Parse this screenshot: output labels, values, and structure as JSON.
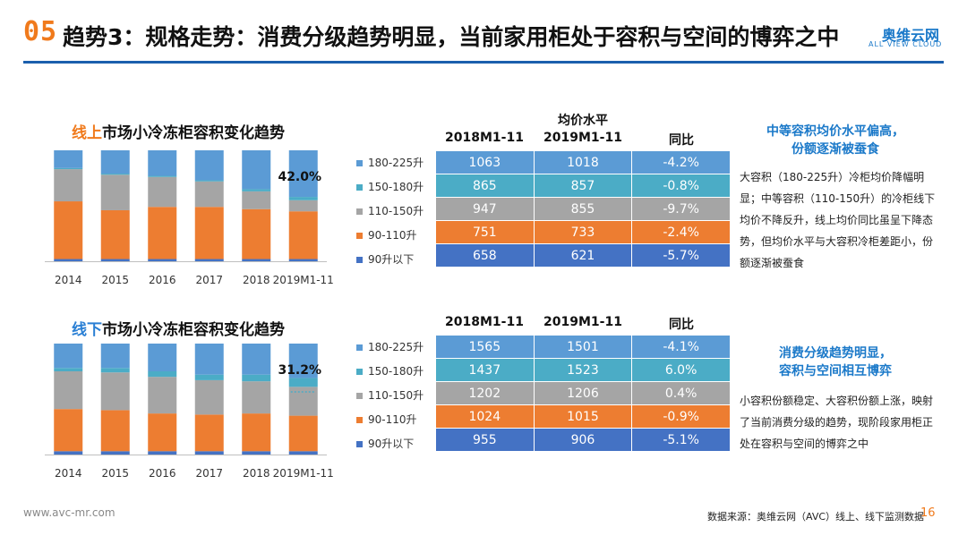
{
  "header": {
    "number": "05",
    "title": "趋势3：规格走势：消费分级趋势明显，当前家用柜处于容积与空间的博弈之中"
  },
  "brand": {
    "cn": "奥维云网",
    "en": "ALL VIEW CLOUD"
  },
  "legend": [
    "180-225升",
    "150-180升",
    "110-150升",
    "90-110升",
    "90升以下"
  ],
  "colors": {
    "c180_225": "#5b9bd5",
    "c150_180": "#4bacc6",
    "c110_150": "#a5a5a5",
    "c90_110": "#ed7d31",
    "c90": "#4472c4"
  },
  "online": {
    "title_hl": "线上",
    "title_rest": "市场小冷冻柜容积变化趋势",
    "highlight_label": "42.0%"
  },
  "offline": {
    "title_hl": "线下",
    "title_rest": "市场小冷冻柜容积变化趋势",
    "highlight_label": "31.2%"
  },
  "chart_data": [
    {
      "type": "bar",
      "stacked": "percent",
      "title": "线上市场小冷冻柜容积变化趋势",
      "categories": [
        "2014",
        "2015",
        "2016",
        "2017",
        "2018",
        "2019M1-11"
      ],
      "series": [
        {
          "name": "90升以下",
          "values": [
            2,
            2,
            2,
            2,
            2,
            2
          ]
        },
        {
          "name": "90-110升",
          "values": [
            52,
            44,
            47,
            47,
            45,
            43
          ]
        },
        {
          "name": "110-150升",
          "values": [
            29,
            32,
            27,
            23,
            16,
            10
          ]
        },
        {
          "name": "150-180升",
          "values": [
            1,
            1,
            1,
            1,
            2,
            3
          ]
        },
        {
          "name": "180-225升",
          "values": [
            16,
            21,
            23,
            27,
            35,
            42
          ]
        }
      ],
      "annotation": "42.0%"
    },
    {
      "type": "bar",
      "stacked": "percent",
      "title": "线下市场小冷冻柜容积变化趋势",
      "categories": [
        "2014",
        "2015",
        "2016",
        "2017",
        "2018",
        "2019M1-11"
      ],
      "series": [
        {
          "name": "90升以下",
          "values": [
            3,
            3,
            3,
            3,
            3,
            3
          ]
        },
        {
          "name": "90-110升",
          "values": [
            38,
            37,
            34,
            33,
            34,
            32
          ]
        },
        {
          "name": "110-150升",
          "values": [
            34,
            34,
            33,
            31,
            29,
            26
          ]
        },
        {
          "name": "150-180升",
          "values": [
            3,
            4,
            5,
            5,
            6,
            8
          ]
        },
        {
          "name": "180-225升",
          "values": [
            22,
            22,
            25,
            28,
            28,
            31
          ]
        }
      ],
      "annotation": "31.2%"
    }
  ],
  "price_header": "均价水平",
  "table_cols": [
    "2018M1-11",
    "2019M1-11",
    "同比"
  ],
  "online_table": [
    [
      "1063",
      "1018",
      "-4.2%"
    ],
    [
      "865",
      "857",
      "-0.8%"
    ],
    [
      "947",
      "855",
      "-9.7%"
    ],
    [
      "751",
      "733",
      "-2.4%"
    ],
    [
      "658",
      "621",
      "-5.7%"
    ]
  ],
  "offline_table": [
    [
      "1565",
      "1501",
      "-4.1%"
    ],
    [
      "1437",
      "1523",
      "6.0%"
    ],
    [
      "1202",
      "1206",
      "0.4%"
    ],
    [
      "1024",
      "1015",
      "-0.9%"
    ],
    [
      "955",
      "906",
      "-5.1%"
    ]
  ],
  "notes": {
    "top_title1": "中等容积均价水平偏高，",
    "top_title2": "份额逐渐被蚕食",
    "top_body": "大容积（180-225升）冷柜均价降幅明显；中等容积（110-150升）的冷柜线下均价不降反升，线上均价同比虽呈下降态势，但均价水平与大容积冷柜差距小，份额逐渐被蚕食",
    "bottom_title1": "消费分级趋势明显，",
    "bottom_title2": "容积与空间相互博弈",
    "bottom_body": "小容积份额稳定、大容积份额上涨，映射了当前消费分级的趋势，现阶段家用柜正处在容积与空间的博弈之中"
  },
  "footer": {
    "url": "www.avc-mr.com",
    "source": "数据来源：奥维云网（AVC）线上、线下监测数据",
    "page": "16"
  }
}
